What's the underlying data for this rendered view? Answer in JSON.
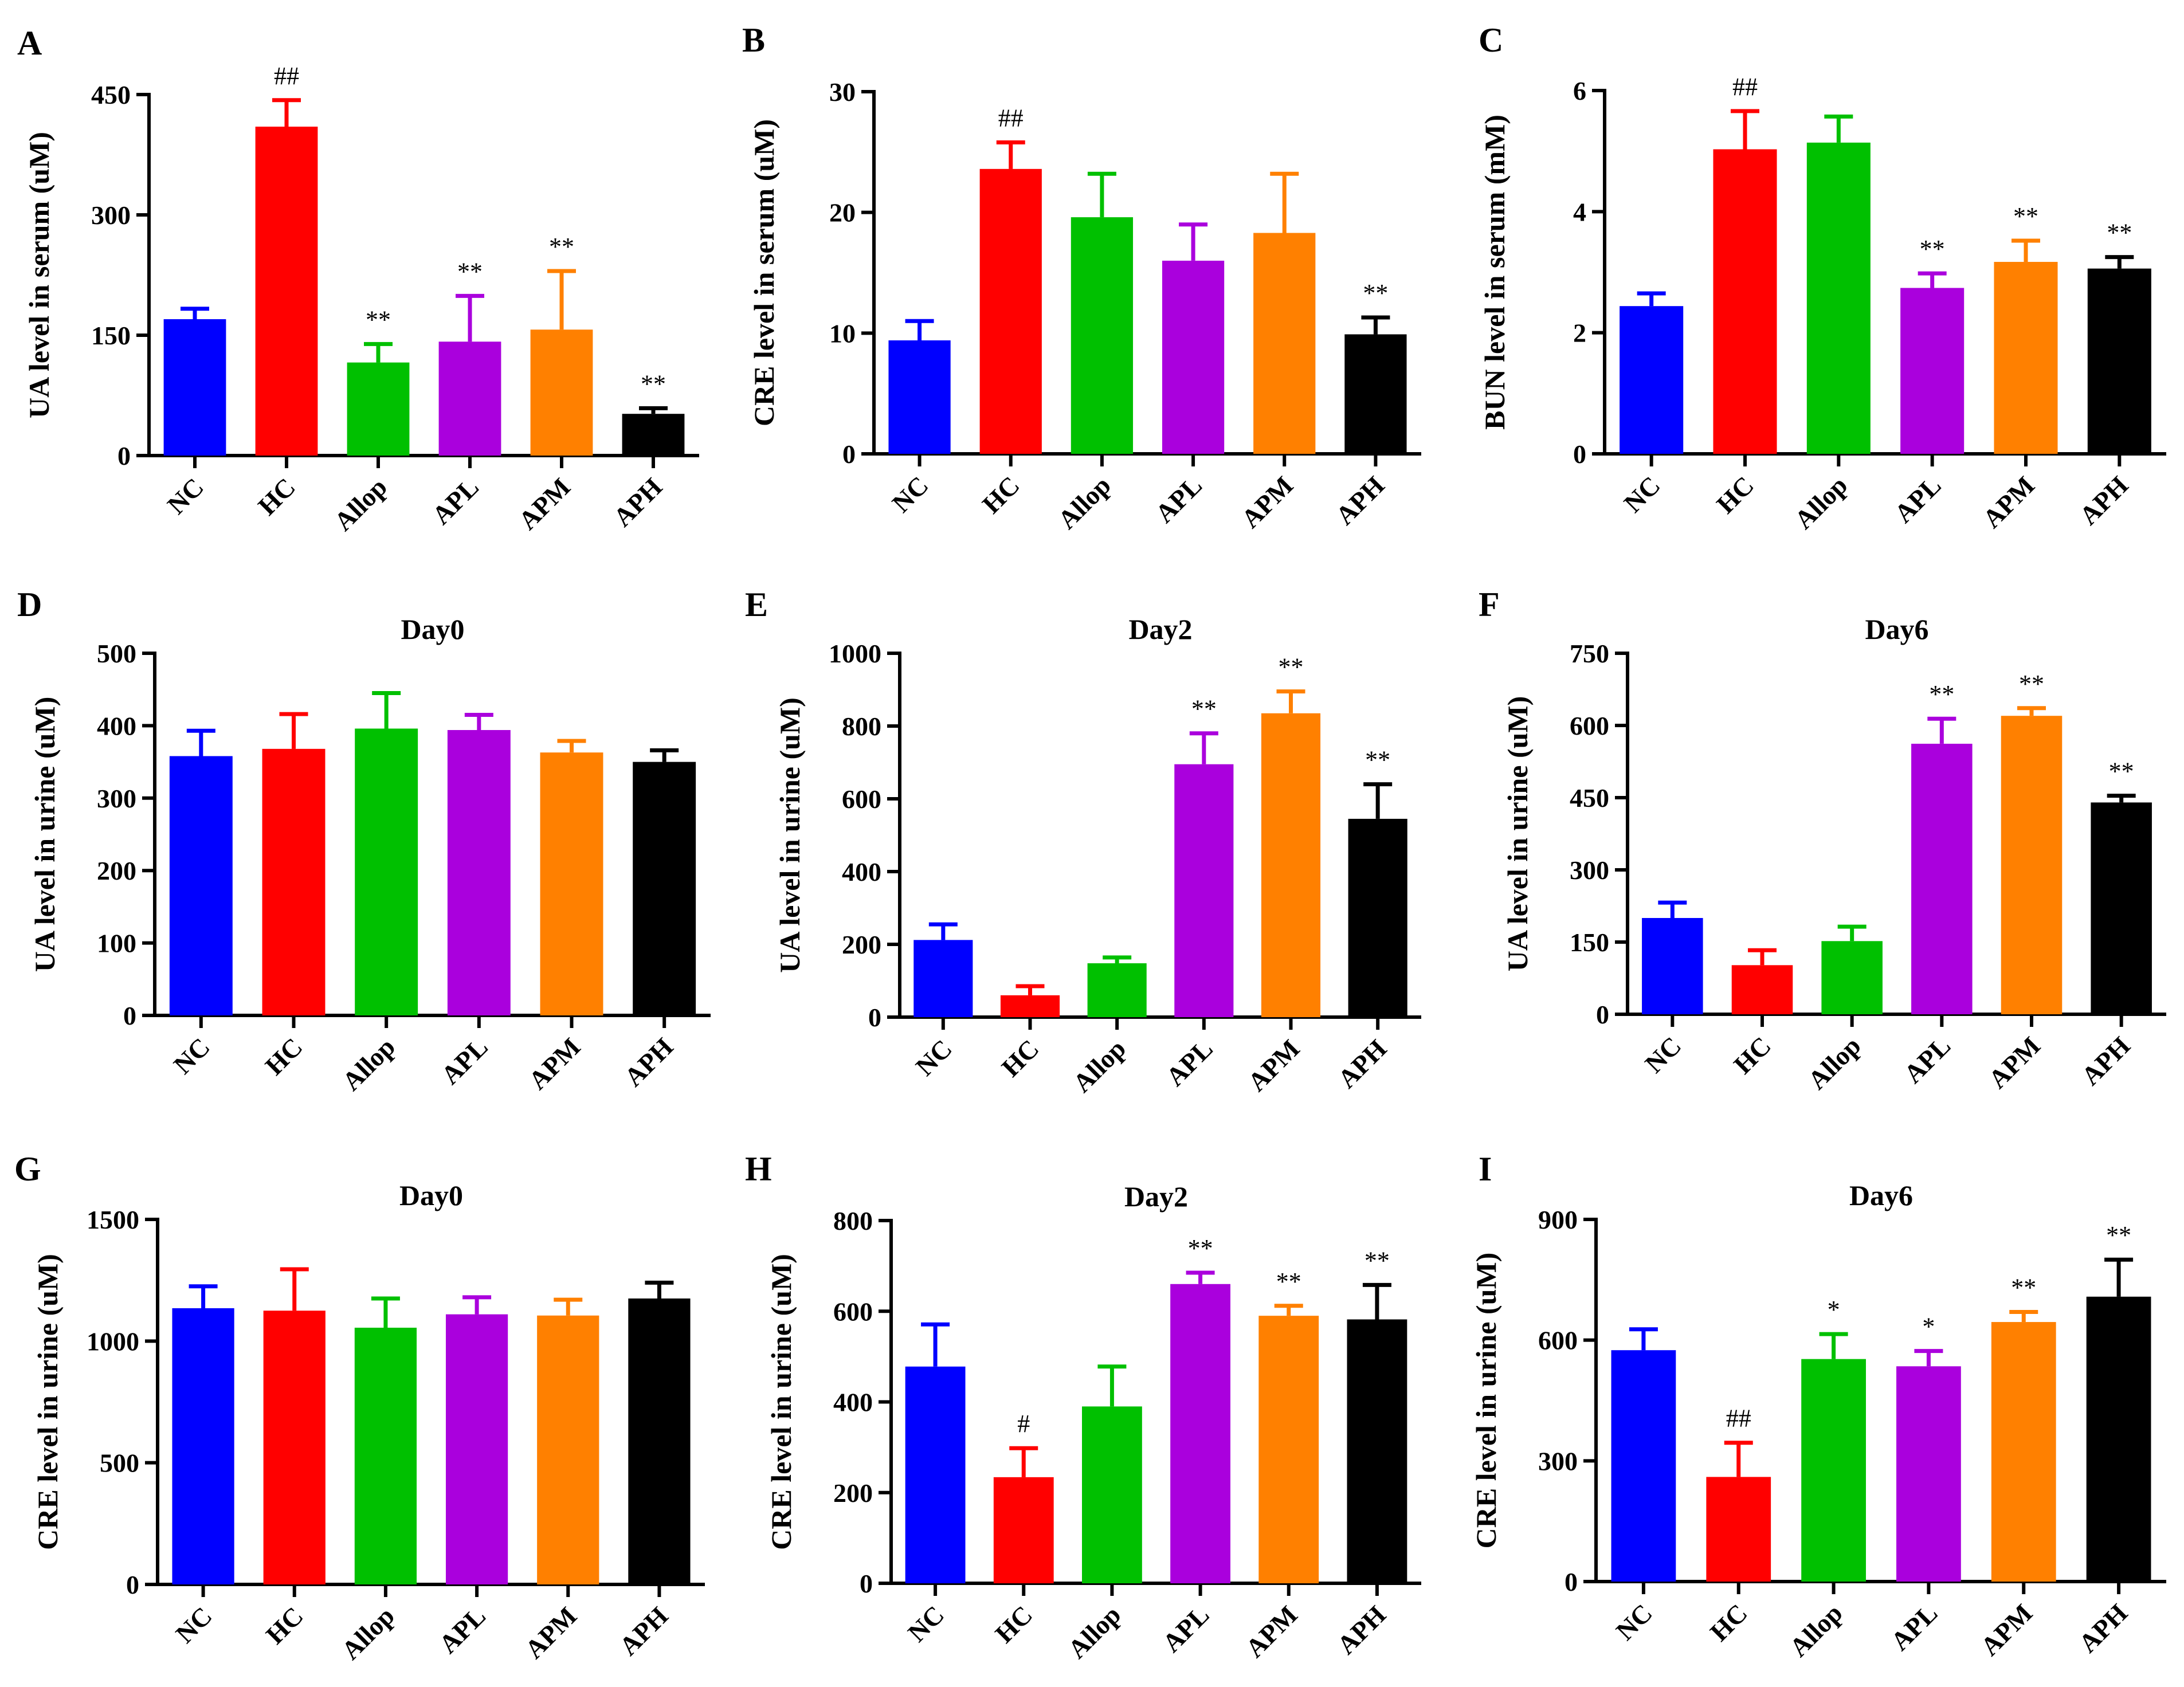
{
  "chart_data": [
    {
      "panel": "A",
      "type": "bar",
      "title": "",
      "ylabel": "UA level in serum (uM)",
      "categories": [
        "NC",
        "HC",
        "Allop",
        "APL",
        "APM",
        "APH"
      ],
      "values": [
        170,
        410,
        116,
        142,
        157,
        52
      ],
      "errors": [
        13,
        33,
        23,
        57,
        73,
        7
      ],
      "significance": [
        "",
        "##",
        "**",
        "**",
        "**",
        "**"
      ],
      "ylim": [
        0,
        450
      ],
      "yticks": [
        0,
        150,
        300,
        450
      ]
    },
    {
      "panel": "B",
      "type": "bar",
      "title": "",
      "ylabel": "CRE level in serum (uM)",
      "categories": [
        "NC",
        "HC",
        "Allop",
        "APL",
        "APM",
        "APH"
      ],
      "values": [
        9.4,
        23.6,
        19.6,
        16.0,
        18.3,
        9.9
      ],
      "errors": [
        1.6,
        2.2,
        3.6,
        3.0,
        4.9,
        1.4
      ],
      "significance": [
        "",
        "##",
        "",
        "",
        "",
        "**"
      ],
      "ylim": [
        0,
        30
      ],
      "yticks": [
        0,
        10,
        20,
        30
      ]
    },
    {
      "panel": "C",
      "type": "bar",
      "title": "",
      "ylabel": "BUN level in serum (mM)",
      "categories": [
        "NC",
        "HC",
        "Allop",
        "APL",
        "APM",
        "APH"
      ],
      "values": [
        2.44,
        5.03,
        5.14,
        2.74,
        3.17,
        3.06
      ],
      "errors": [
        0.21,
        0.63,
        0.43,
        0.24,
        0.35,
        0.19
      ],
      "significance": [
        "",
        "##",
        "",
        "**",
        "**",
        "**"
      ],
      "ylim": [
        0,
        6
      ],
      "yticks": [
        0,
        2,
        4,
        6
      ]
    },
    {
      "panel": "D",
      "type": "bar",
      "title": "Day0",
      "ylabel": "UA level in urine (uM)",
      "categories": [
        "NC",
        "HC",
        "Allop",
        "APL",
        "APM",
        "APH"
      ],
      "values": [
        358,
        368,
        396,
        394,
        363,
        350
      ],
      "errors": [
        35,
        48,
        49,
        21,
        16,
        16
      ],
      "significance": [
        "",
        "",
        "",
        "",
        "",
        ""
      ],
      "ylim": [
        0,
        500
      ],
      "yticks": [
        0,
        100,
        200,
        300,
        400,
        500
      ]
    },
    {
      "panel": "E",
      "type": "bar",
      "title": "Day2",
      "ylabel": "UA level in urine (uM)",
      "categories": [
        "NC",
        "HC",
        "Allop",
        "APL",
        "APM",
        "APH"
      ],
      "values": [
        212,
        60,
        148,
        695,
        835,
        545
      ],
      "errors": [
        43,
        25,
        16,
        85,
        60,
        95
      ],
      "significance": [
        "",
        "",
        "",
        "**",
        "**",
        "**"
      ],
      "ylim": [
        0,
        1000
      ],
      "yticks": [
        0,
        200,
        400,
        600,
        800,
        1000
      ]
    },
    {
      "panel": "F",
      "type": "bar",
      "title": "Day6",
      "ylabel": "UA level in urine (uM)",
      "categories": [
        "NC",
        "HC",
        "Allop",
        "APL",
        "APM",
        "APH"
      ],
      "values": [
        200,
        102,
        152,
        562,
        620,
        440
      ],
      "errors": [
        32,
        31,
        30,
        52,
        16,
        14
      ],
      "significance": [
        "",
        "",
        "",
        "**",
        "**",
        "**"
      ],
      "ylim": [
        0,
        750
      ],
      "yticks": [
        0,
        150,
        300,
        450,
        600,
        750
      ]
    },
    {
      "panel": "G",
      "type": "bar",
      "title": "Day0",
      "ylabel": "CRE level in urine (uM)",
      "categories": [
        "NC",
        "HC",
        "Allop",
        "APL",
        "APM",
        "APH"
      ],
      "values": [
        1135,
        1125,
        1055,
        1110,
        1105,
        1175
      ],
      "errors": [
        90,
        170,
        120,
        70,
        65,
        65
      ],
      "significance": [
        "",
        "",
        "",
        "",
        "",
        ""
      ],
      "ylim": [
        0,
        1500
      ],
      "yticks": [
        0,
        500,
        1000,
        1500
      ]
    },
    {
      "panel": "H",
      "type": "bar",
      "title": "Day2",
      "ylabel": "CRE level in urine (uM)",
      "categories": [
        "NC",
        "HC",
        "Allop",
        "APL",
        "APM",
        "APH"
      ],
      "values": [
        478,
        234,
        390,
        660,
        590,
        582
      ],
      "errors": [
        93,
        64,
        88,
        25,
        22,
        76
      ],
      "significance": [
        "",
        "#",
        "",
        "**",
        "**",
        "**"
      ],
      "ylim": [
        0,
        800
      ],
      "yticks": [
        0,
        200,
        400,
        600,
        800
      ]
    },
    {
      "panel": "I",
      "type": "bar",
      "title": "Day6",
      "ylabel": "CRE level in urine (uM)",
      "categories": [
        "NC",
        "HC",
        "Allop",
        "APL",
        "APM",
        "APH"
      ],
      "values": [
        575,
        260,
        553,
        535,
        645,
        708
      ],
      "errors": [
        52,
        85,
        62,
        38,
        25,
        92
      ],
      "significance": [
        "",
        "##",
        "*",
        "*",
        "**",
        "**"
      ],
      "ylim": [
        0,
        900
      ],
      "yticks": [
        0,
        300,
        600,
        900
      ]
    }
  ],
  "bar_colors": [
    "#0000ff",
    "#ff0000",
    "#00c000",
    "#aa00dd",
    "#ff8000",
    "#000000"
  ]
}
